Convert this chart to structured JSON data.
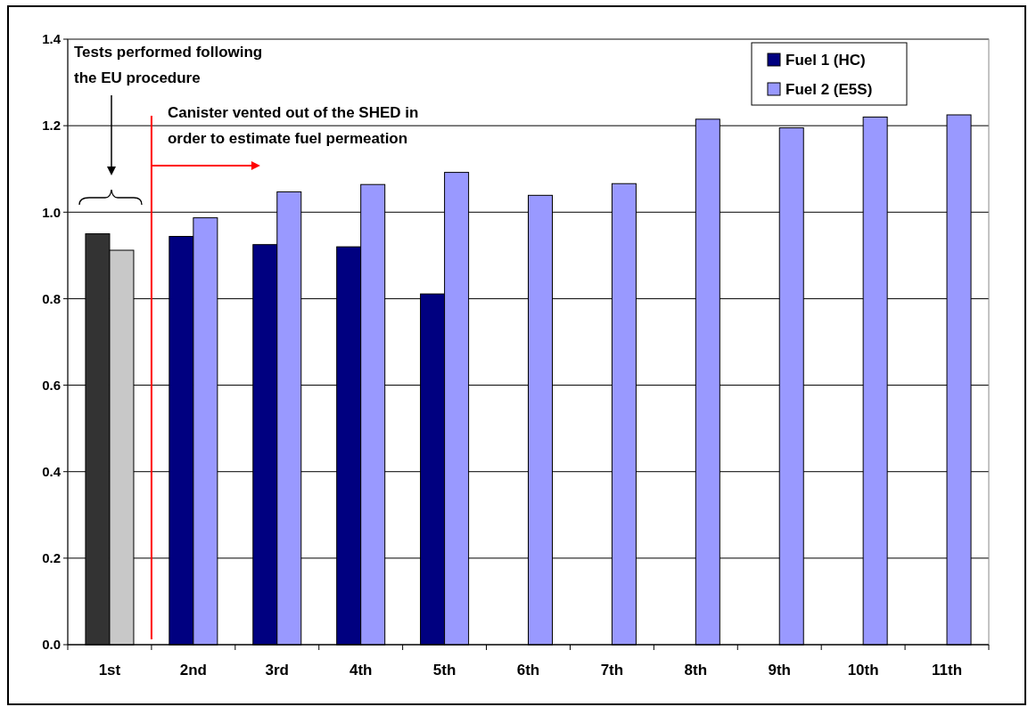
{
  "chart_data": {
    "type": "bar",
    "categories": [
      "1st",
      "2nd",
      "3rd",
      "4th",
      "5th",
      "6th",
      "7th",
      "8th",
      "9th",
      "10th",
      "11th"
    ],
    "series": [
      {
        "name": "Fuel 1 (HC)",
        "color": "#000080",
        "colors": [
          "#333333",
          "#000080",
          "#000080",
          "#000080",
          "#000080",
          null,
          null,
          null,
          null,
          null,
          null
        ],
        "values": [
          0.95,
          0.944,
          0.925,
          0.92,
          0.811,
          null,
          null,
          null,
          null,
          null,
          null
        ]
      },
      {
        "name": "Fuel 2 (E5S)",
        "color": "#9999ff",
        "colors": [
          "#c8c8c8",
          "#9999ff",
          "#9999ff",
          "#9999ff",
          "#9999ff",
          "#9999ff",
          "#9999ff",
          "#9999ff",
          "#9999ff",
          "#9999ff",
          "#9999ff"
        ],
        "values": [
          0.912,
          0.987,
          1.047,
          1.064,
          1.092,
          1.039,
          1.066,
          1.215,
          1.195,
          1.22,
          1.225
        ]
      }
    ],
    "ylim": [
      0,
      1.4
    ],
    "yticks": [
      {
        "value": 0,
        "label": "0.0"
      },
      {
        "value": 0.2,
        "label": "0.2"
      },
      {
        "value": 0.4,
        "label": "0.4"
      },
      {
        "value": 0.6,
        "label": "0.6"
      },
      {
        "value": 0.8,
        "label": "0.8"
      },
      {
        "value": 1,
        "label": "1.0"
      },
      {
        "value": 1.2,
        "label": "1.2"
      },
      {
        "value": 1.4,
        "label": "1.4"
      }
    ],
    "grid": "y",
    "legend": "top right",
    "annotations": [
      "Tests performed following the EU procedure",
      "Canister vented out of the SHED in order to estimate fuel permeation"
    ]
  }
}
